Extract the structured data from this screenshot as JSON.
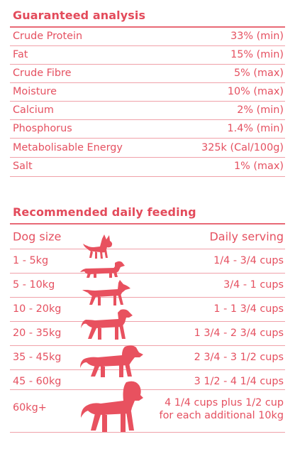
{
  "analysis": {
    "title": "Guaranteed analysis",
    "rows": [
      {
        "label": "Crude Protein",
        "value": "33% (min)"
      },
      {
        "label": "Fat",
        "value": "15% (min)"
      },
      {
        "label": "Crude Fibre",
        "value": "5% (max)"
      },
      {
        "label": "Moisture",
        "value": "10% (max)"
      },
      {
        "label": "Calcium",
        "value": "2% (min)"
      },
      {
        "label": "Phosphorus",
        "value": "1.4% (min)"
      },
      {
        "label": "Metabolisable Energy",
        "value": "325k (Cal/100g)"
      },
      {
        "label": "Salt",
        "value": "1% (max)"
      }
    ]
  },
  "feeding": {
    "title": "Recommended daily feeding",
    "col_size": "Dog size",
    "col_serving": "Daily serving",
    "rows": [
      {
        "size": "1 - 5kg",
        "serving": "1/4 - 3/4 cups",
        "icon": "chihuahua-icon"
      },
      {
        "size": "5 - 10kg",
        "serving": "3/4 - 1 cups",
        "icon": "dachshund-icon"
      },
      {
        "size": "10 - 20kg",
        "serving": "1 - 1 3/4 cups",
        "icon": "medium-dog-icon"
      },
      {
        "size": "20 - 35kg",
        "serving": "1 3/4 - 2 3/4 cups",
        "icon": "labrador-icon"
      },
      {
        "size": "35 - 45kg",
        "serving": "2 3/4 - 3 1/2 cups",
        "icon": "retriever-icon"
      },
      {
        "size": "45 - 60kg",
        "serving": "3 1/2 - 4 1/4 cups",
        "icon": "large-dog-icon"
      },
      {
        "size": "60kg+",
        "serving_line1": "4 1/4 cups plus 1/2 cup",
        "serving_line2": "for each additional 10kg",
        "icon": "giant-dog-icon"
      }
    ]
  },
  "colors": {
    "accent": "#e55060",
    "rule": "#f0a1a9"
  }
}
